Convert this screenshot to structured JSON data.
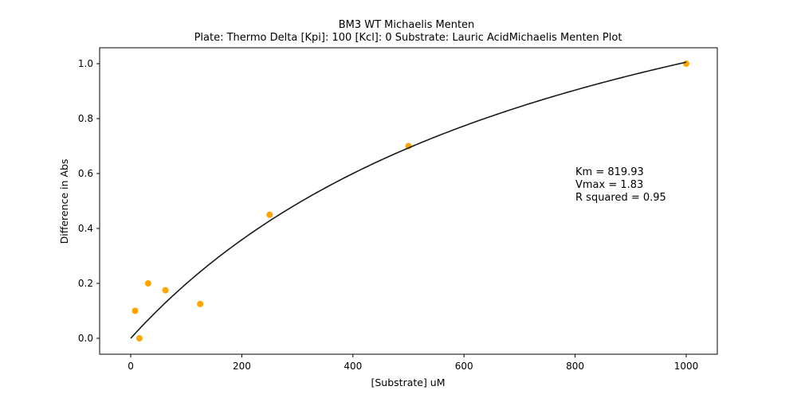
{
  "chart_data": {
    "type": "scatter",
    "title": "BM3 WT Michaelis Menten",
    "subtitle": "Plate: Thermo Delta  [Kpi]: 100  [Kcl]: 0  Substrate: Lauric AcidMichaelis Menten Plot",
    "xlabel": "[Substrate] uM",
    "ylabel": "Difference in Abs",
    "xlim": [
      -56,
      1056
    ],
    "ylim": [
      -0.058,
      1.058
    ],
    "xticks": [
      0,
      200,
      400,
      600,
      800,
      1000
    ],
    "xtick_labels": [
      "0",
      "200",
      "400",
      "600",
      "800",
      "1000"
    ],
    "yticks": [
      0.0,
      0.2,
      0.4,
      0.6,
      0.8,
      1.0
    ],
    "ytick_labels": [
      "0.0",
      "0.2",
      "0.4",
      "0.6",
      "0.8",
      "1.0"
    ],
    "grid": false,
    "series": [
      {
        "kind": "scatter",
        "color": "#ffa500",
        "x": [
          7.8,
          15.6,
          31.25,
          62.5,
          125,
          250,
          500,
          1000
        ],
        "y": [
          0.1,
          0.0,
          0.2,
          0.175,
          0.125,
          0.45,
          0.7,
          1.0
        ]
      },
      {
        "kind": "fit-line",
        "color": "#1a1a1a",
        "model": "michaelis-menten",
        "vmax": 1.83,
        "km": 819.93,
        "x_range": [
          0,
          1000
        ]
      }
    ],
    "annotations": [
      "Km = 819.93",
      "Vmax = 1.83",
      "R squared = 0.95"
    ]
  }
}
